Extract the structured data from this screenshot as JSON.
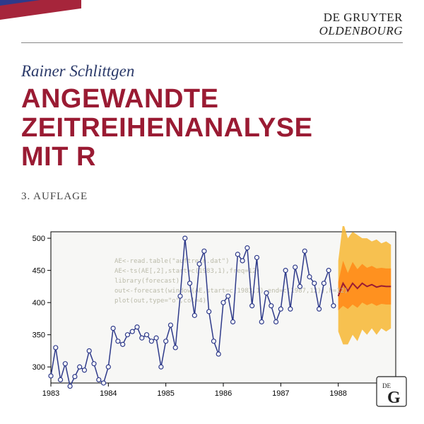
{
  "publisher": {
    "line1": "DE GRUYTER",
    "line2": "OLDENBOURG"
  },
  "author": "Rainer Schlittgen",
  "title_lines": [
    "ANGEWANDTE",
    "ZEITREIHENANALYSE",
    "MIT R"
  ],
  "edition": "3. AUFLAGE",
  "colors": {
    "stripe_blue": "#2e3a8a",
    "stripe_red": "#a6253b",
    "title": "#9a1b33",
    "author": "#2b3a6a",
    "series": "#2e3a8a",
    "forecast": "#9a1b33",
    "fan_outer": "#f7b733",
    "fan_inner": "#ff8c1a",
    "background": "#ffffff",
    "plot_bg": "#f7f7f5",
    "axis": "#000000"
  },
  "chart": {
    "type": "line",
    "xlim": [
      1983,
      1989
    ],
    "ylim": [
      275,
      510
    ],
    "xticks": [
      1983,
      1984,
      1985,
      1986,
      1987,
      1988
    ],
    "yticks": [
      300,
      350,
      400,
      450,
      500
    ],
    "label_fontsize": 11,
    "marker": "circle",
    "marker_size": 3,
    "line_width": 1.5,
    "values": [
      286,
      330,
      280,
      305,
      270,
      285,
      300,
      295,
      325,
      305,
      280,
      275,
      300,
      360,
      340,
      335,
      350,
      355,
      362,
      345,
      350,
      340,
      345,
      300,
      340,
      365,
      330,
      410,
      500,
      430,
      380,
      460,
      480,
      386,
      340,
      320,
      400,
      410,
      370,
      475,
      465,
      485,
      395,
      470,
      370,
      415,
      395,
      370,
      390,
      450,
      390,
      455,
      425,
      480,
      440,
      430,
      390,
      430,
      450,
      395
    ],
    "forecast_mean": [
      410,
      430,
      418,
      430,
      422,
      430,
      425,
      428,
      424,
      426,
      425,
      425
    ],
    "fan_inner_low": [
      388,
      395,
      390,
      397,
      392,
      400,
      396,
      399,
      395,
      398,
      397,
      397
    ],
    "fan_inner_high": [
      432,
      465,
      446,
      463,
      452,
      460,
      454,
      457,
      453,
      454,
      453,
      453
    ],
    "fan_outer_low": [
      355,
      335,
      335,
      350,
      340,
      358,
      350,
      360,
      350,
      360,
      355,
      360
    ],
    "fan_outer_high": [
      465,
      525,
      500,
      510,
      505,
      500,
      500,
      495,
      498,
      492,
      495,
      490
    ]
  },
  "code_overlay": [
    "AE<-read.table(\"auftrein.dat\")",
    "AE<-ts(AE[,2],start=c(1983,1),freq=12)",
    "library(forecast)",
    "out<-forecast(window(AE,start=c(1983,1),end=c(1987,12)),h=12)",
    "plot(out,type=\"o\",col=4)"
  ],
  "logo": {
    "text1": "DE",
    "text2": "G"
  }
}
